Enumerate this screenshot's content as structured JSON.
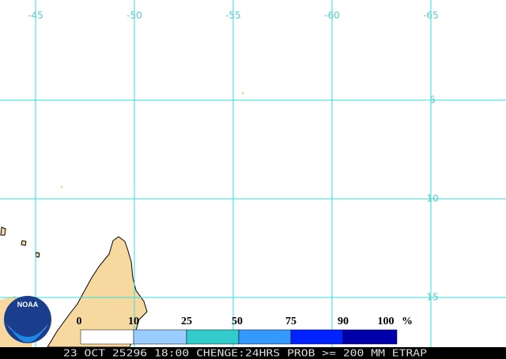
{
  "map": {
    "longitude_labels": [
      "-45",
      "-50",
      "-55",
      "-60",
      "-65"
    ],
    "latitude_labels": [
      "-5",
      "-10",
      "-15"
    ]
  },
  "legend": {
    "labels": [
      "0",
      "10",
      "25",
      "50",
      "75",
      "90",
      "100"
    ],
    "unit": "%",
    "colors": [
      "#ffffff",
      "#99ccff",
      "#33cccc",
      "#3399ff",
      "#0022ff",
      "#0000aa"
    ]
  },
  "logo": "NOAA",
  "footer": "23 OCT 25296 18:00 CHENGE:24HRS PROB >= 200 MM ETRAP"
}
